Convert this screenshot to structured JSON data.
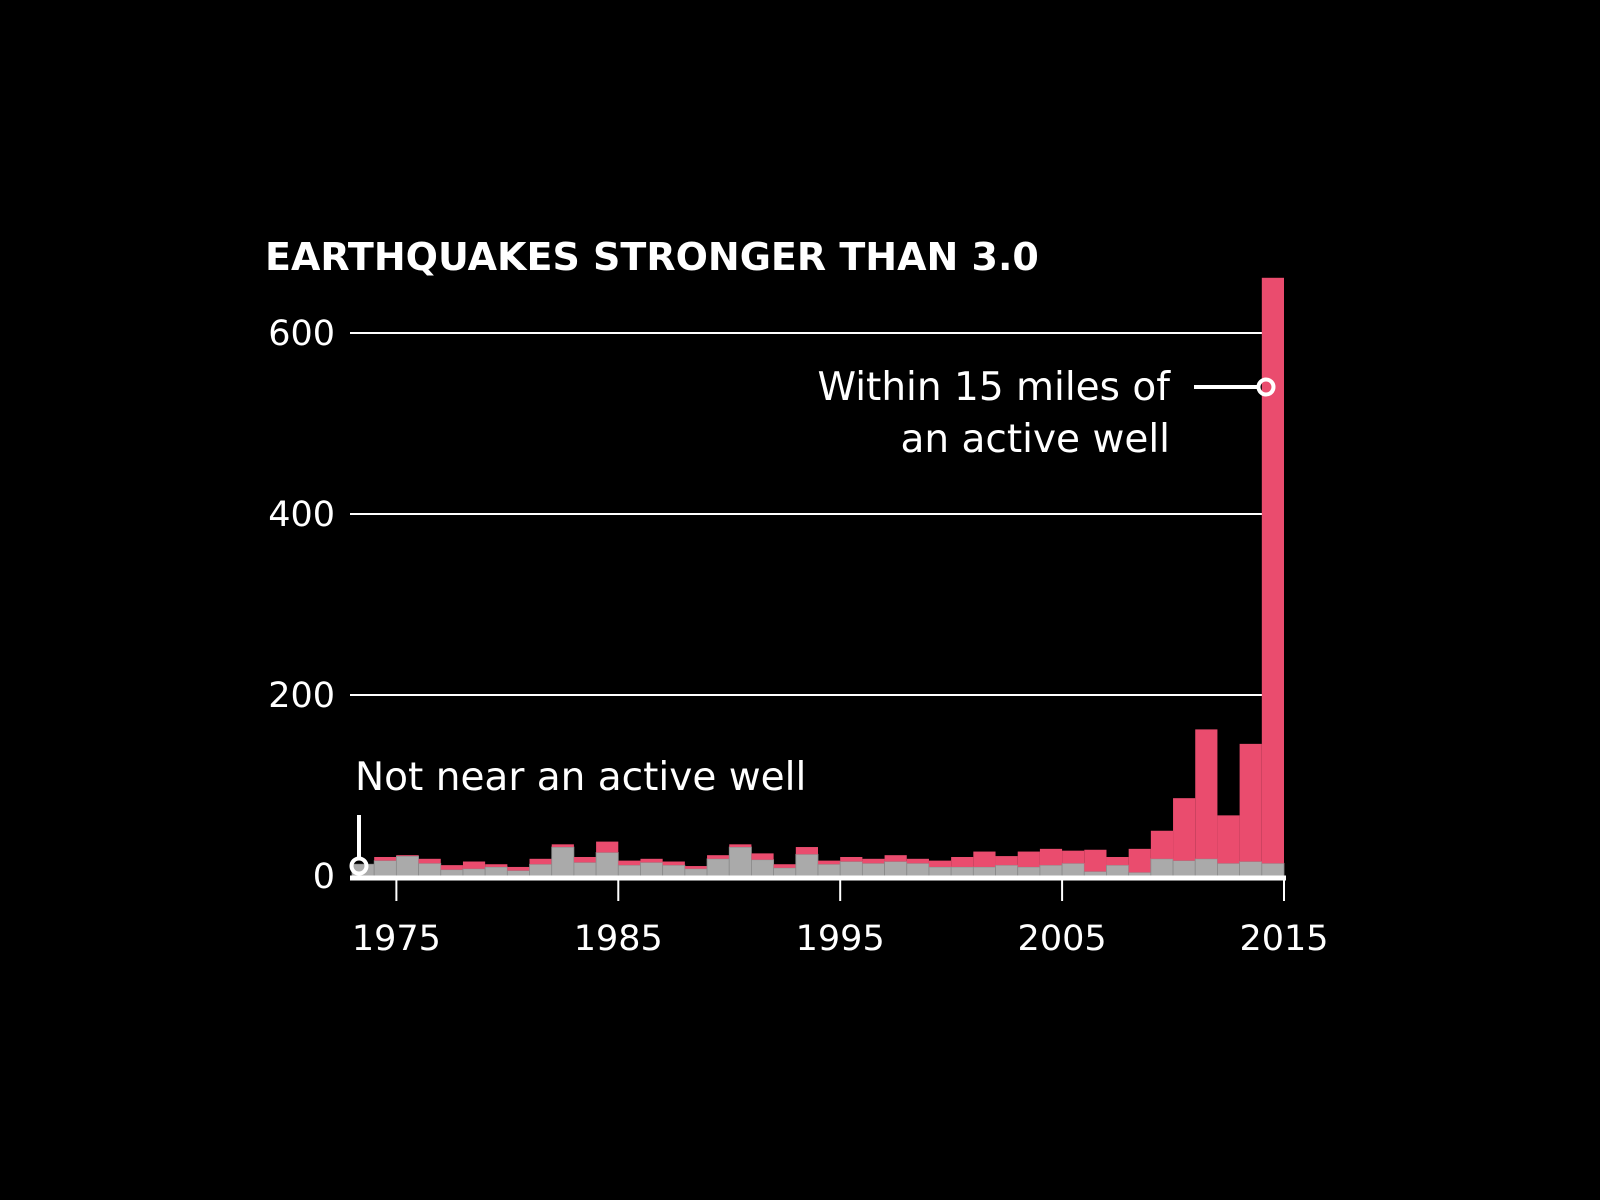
{
  "chart_data": {
    "type": "bar",
    "stacked": true,
    "title": "EARTHQUAKES STRONGER THAN 3.0",
    "xlabel": "",
    "ylabel": "",
    "ylim": [
      0,
      660
    ],
    "yticks": [
      0,
      200,
      400,
      600
    ],
    "xticks": [
      1975,
      1985,
      1995,
      2005,
      2015
    ],
    "grid": true,
    "categories": [
      1973,
      1974,
      1975,
      1976,
      1977,
      1978,
      1979,
      1980,
      1981,
      1982,
      1983,
      1984,
      1985,
      1986,
      1987,
      1988,
      1989,
      1990,
      1991,
      1992,
      1993,
      1994,
      1995,
      1996,
      1997,
      1998,
      1999,
      2000,
      2001,
      2002,
      2003,
      2004,
      2005,
      2006,
      2007,
      2008,
      2009,
      2010,
      2011,
      2012,
      2013,
      2014
    ],
    "series": [
      {
        "name": "Not near an active well",
        "color": "#aaaaaa",
        "values": [
          13,
          17,
          22,
          14,
          7,
          8,
          10,
          6,
          13,
          32,
          15,
          26,
          12,
          15,
          12,
          8,
          19,
          32,
          18,
          9,
          24,
          13,
          16,
          14,
          16,
          14,
          10,
          10,
          10,
          12,
          10,
          12,
          14,
          5,
          12,
          4,
          19,
          17,
          19,
          14,
          16,
          14
        ]
      },
      {
        "name": "Within 15 miles of an active well",
        "color": "#ea4c6e",
        "values": [
          0,
          4,
          1,
          5,
          5,
          8,
          3,
          4,
          6,
          3,
          6,
          12,
          5,
          4,
          4,
          3,
          4,
          3,
          7,
          4,
          8,
          4,
          5,
          5,
          7,
          5,
          7,
          11,
          17,
          10,
          17,
          18,
          14,
          24,
          9,
          26,
          31,
          69,
          143,
          53,
          130,
          647
        ]
      }
    ],
    "annotations": {
      "near_well": [
        "Within 15 miles of",
        "an active well"
      ],
      "not_near_well": "Not near an active well"
    }
  }
}
